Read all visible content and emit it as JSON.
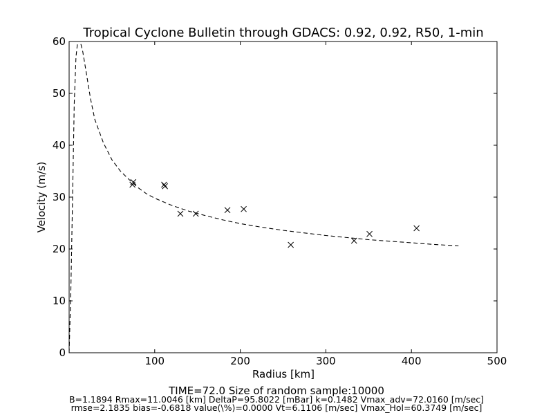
{
  "chart_data": {
    "type": "scatter",
    "title": "Tropical Cyclone Bulletin through GDACS: 0.92, 0.92, R50, 1-min",
    "xlabel": "Radius [km]",
    "ylabel": "Velocity (m/s)",
    "xlim": [
      0,
      500
    ],
    "ylim": [
      0,
      60
    ],
    "xticks": [
      "100",
      "200",
      "300",
      "400",
      "500"
    ],
    "yticks": [
      "0",
      "10",
      "20",
      "30",
      "40",
      "50",
      "60"
    ],
    "grid": false,
    "legend": "none",
    "series": [
      {
        "style": "x-markers",
        "color": "#000000",
        "points": [
          [
            74,
            32.4
          ],
          [
            75,
            32.9
          ],
          [
            111,
            32.4
          ],
          [
            112,
            32.1
          ],
          [
            130,
            26.8
          ],
          [
            148,
            26.8
          ],
          [
            185,
            27.5
          ],
          [
            204,
            27.7
          ],
          [
            259,
            20.8
          ],
          [
            333,
            21.6
          ],
          [
            351,
            22.9
          ],
          [
            406,
            24.0
          ]
        ]
      },
      {
        "style": "dashed-line",
        "color": "#000000",
        "points": [
          [
            0,
            0
          ],
          [
            2,
            12
          ],
          [
            4,
            30
          ],
          [
            6,
            48
          ],
          [
            8,
            57
          ],
          [
            10,
            60
          ],
          [
            11,
            60.3
          ],
          [
            13,
            60
          ],
          [
            16,
            58
          ],
          [
            20,
            54
          ],
          [
            25,
            49
          ],
          [
            30,
            45
          ],
          [
            40,
            40.5
          ],
          [
            50,
            37.2
          ],
          [
            60,
            35
          ],
          [
            70,
            33.4
          ],
          [
            80,
            31.9
          ],
          [
            90,
            30.7
          ],
          [
            100,
            29.8
          ],
          [
            120,
            28.4
          ],
          [
            140,
            27.3
          ],
          [
            160,
            26.4
          ],
          [
            180,
            25.6
          ],
          [
            200,
            24.9
          ],
          [
            225,
            24.2
          ],
          [
            250,
            23.6
          ],
          [
            275,
            23.1
          ],
          [
            300,
            22.6
          ],
          [
            325,
            22.2
          ],
          [
            350,
            21.8
          ],
          [
            375,
            21.5
          ],
          [
            400,
            21.2
          ],
          [
            425,
            20.9
          ],
          [
            455,
            20.6
          ]
        ]
      }
    ]
  },
  "footer": {
    "line1": "TIME=72.0      Size of random sample:10000",
    "line2": "B=1.1894 Rmax=11.0046 [km]  DeltaP=95.8022 [mBar] k=0.1482 Vmax_adv=72.0160 [m/sec]",
    "line3": "rmse=2.1835 bias=-0.6818 value(\\%)=0.0000 Vt=6.1106 [m/sec] Vmax_Hol=60.3749 [m/sec]"
  }
}
